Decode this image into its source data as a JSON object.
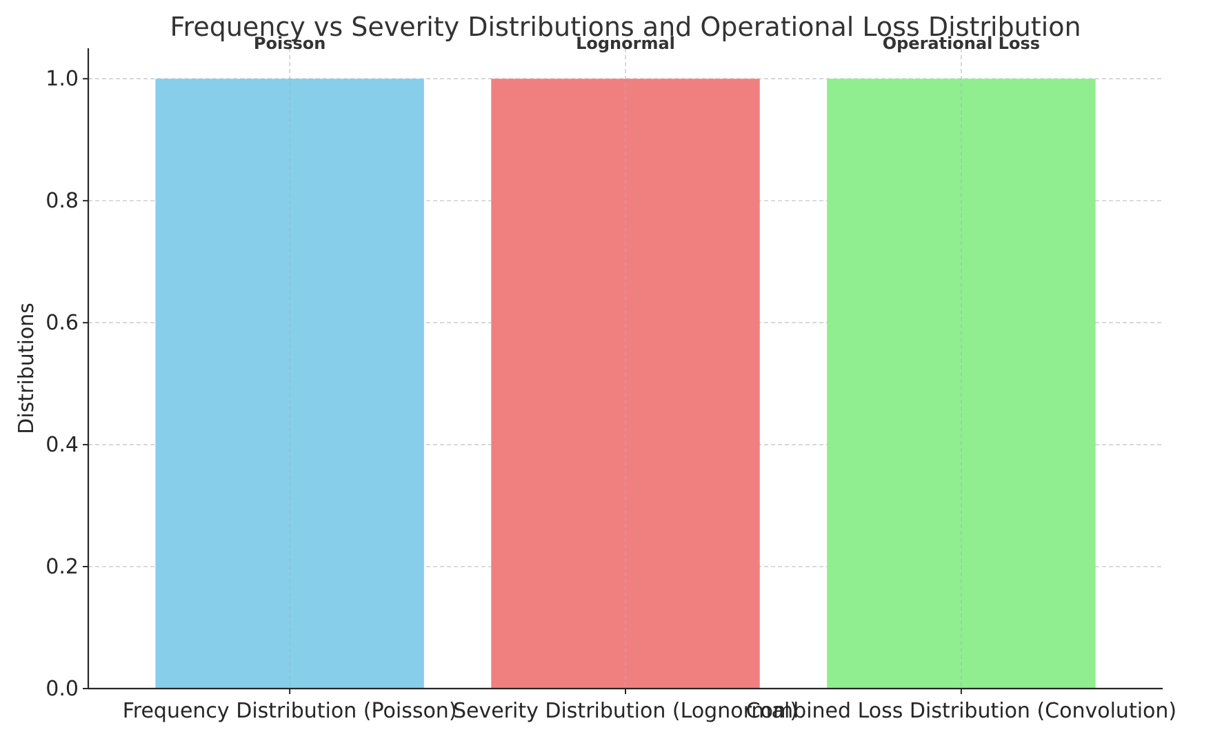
{
  "chart_data": {
    "type": "bar",
    "title": "Frequency vs Severity Distributions and Operational Loss Distribution",
    "xlabel": "",
    "ylabel": "Distributions",
    "categories": [
      "Frequency Distribution (Poisson)",
      "Severity Distribution (Lognormal)",
      "Combined Loss Distribution (Convolution)"
    ],
    "values": [
      1.0,
      1.0,
      1.0
    ],
    "bar_labels": [
      "Poisson",
      "Lognormal",
      "Operational Loss"
    ],
    "colors": [
      "#87ceeb",
      "#f08080",
      "#90ee90"
    ],
    "ylim": [
      0,
      1.05
    ],
    "yticks": [
      0.0,
      0.2,
      0.4,
      0.6,
      0.8,
      1.0
    ],
    "ytick_labels": [
      "0.0",
      "0.2",
      "0.4",
      "0.6",
      "0.8",
      "1.0"
    ],
    "grid": true,
    "legend": "none"
  }
}
